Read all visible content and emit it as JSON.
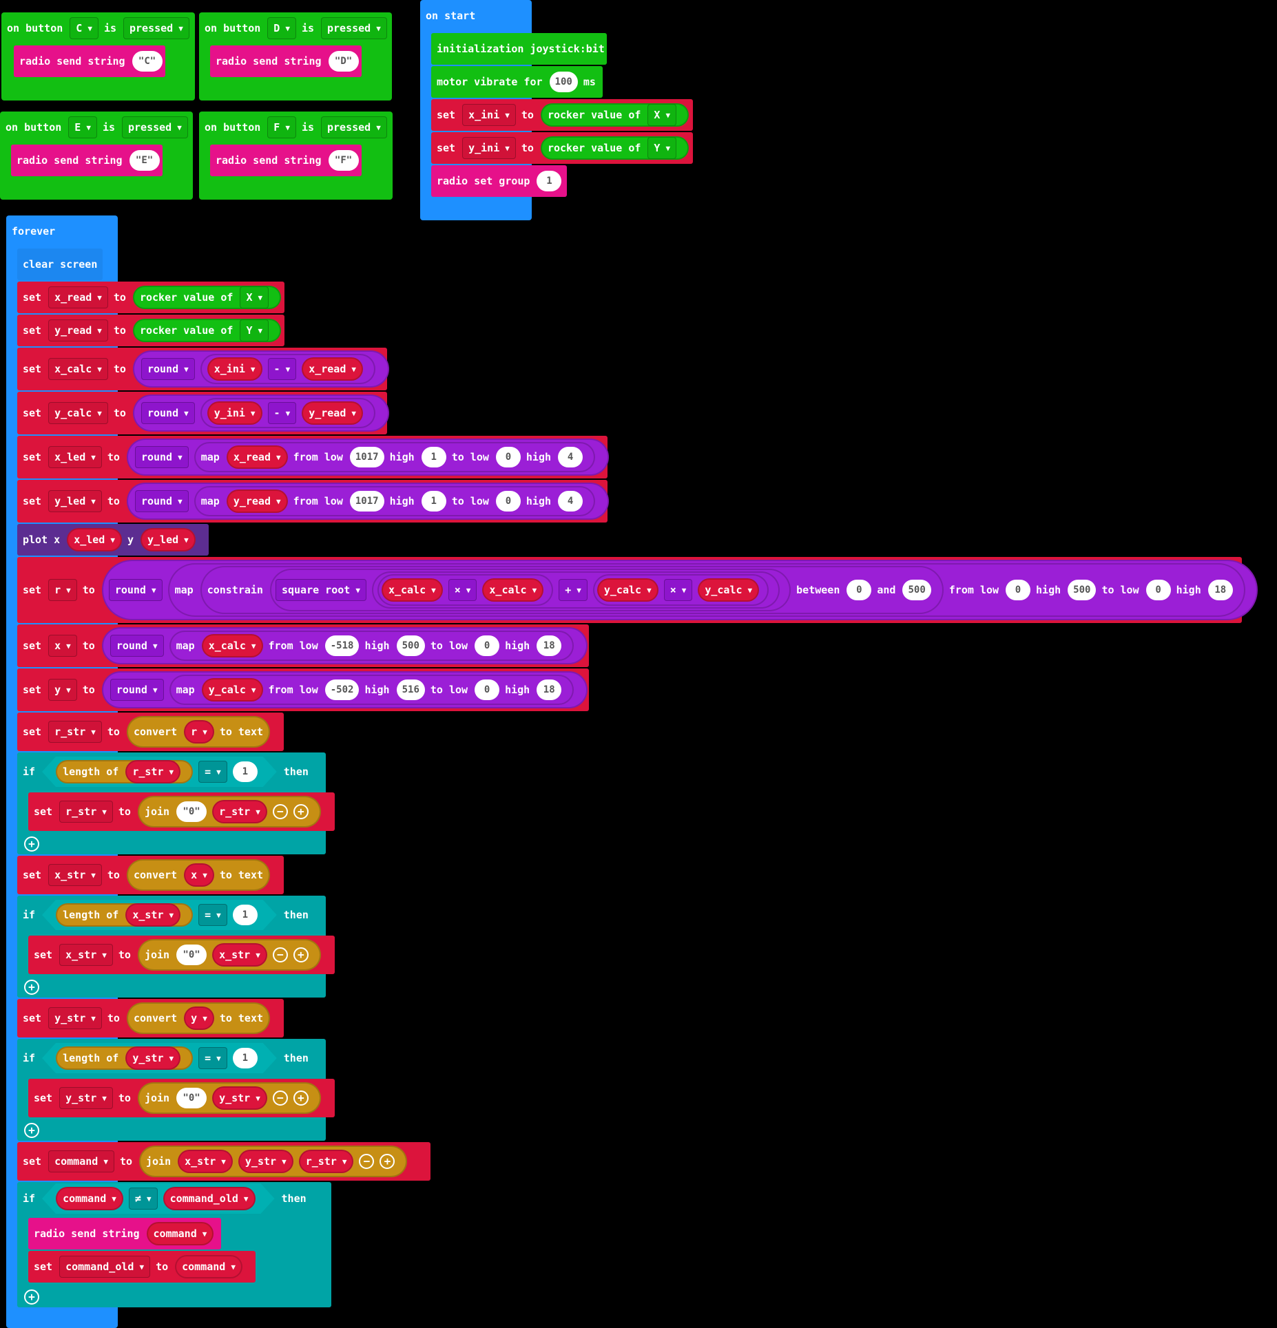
{
  "events": {
    "c": {
      "on": "on button",
      "button": "C",
      "is": "is",
      "state": "pressed",
      "action": "radio send string",
      "value": "C"
    },
    "d": {
      "on": "on button",
      "button": "D",
      "is": "is",
      "state": "pressed",
      "action": "radio send string",
      "value": "D"
    },
    "e": {
      "on": "on button",
      "button": "E",
      "is": "is",
      "state": "pressed",
      "action": "radio send string",
      "value": "E"
    },
    "f": {
      "on": "on button",
      "button": "F",
      "is": "is",
      "state": "pressed",
      "action": "radio send string",
      "value": "F"
    }
  },
  "on_start": {
    "label": "on start",
    "init": "initialization joystick:bit",
    "vibrate": {
      "label": "motor vibrate for",
      "value": "100",
      "unit": "ms"
    },
    "set": "set",
    "to": "to",
    "x_ini": "x_ini",
    "y_ini": "y_ini",
    "rocker": "rocker value of",
    "axis_x": "X",
    "axis_y": "Y",
    "group": {
      "label": "radio set group",
      "value": "1"
    }
  },
  "forever": {
    "label": "forever",
    "clear": "clear screen",
    "kw": {
      "set": "set",
      "to": "to",
      "round": "round",
      "map": "map",
      "from_low": "from low",
      "high": "high",
      "to_low": "to low",
      "plot": "plot x",
      "y": "y",
      "constrain": "constrain",
      "sqrt": "square root",
      "between": "between",
      "and": "and",
      "convert": "convert",
      "to_text": "to text",
      "if": "if",
      "then": "then",
      "length_of": "length of",
      "join": "join",
      "radio_send": "radio send string",
      "rocker": "rocker value of",
      "minus": "-",
      "times": "×",
      "plus": "+",
      "eq": "=",
      "neq": "≠"
    },
    "vars": {
      "x_read": "x_read",
      "y_read": "y_read",
      "x_calc": "x_calc",
      "y_calc": "y_calc",
      "x_led": "x_led",
      "y_led": "y_led",
      "x_ini": "x_ini",
      "y_ini": "y_ini",
      "r": "r",
      "x": "x",
      "y": "y",
      "r_str": "r_str",
      "x_str": "x_str",
      "y_str": "y_str",
      "command": "command",
      "command_old": "command_old"
    },
    "axis_x": "X",
    "axis_y": "Y",
    "led_map": {
      "from_low": "1017",
      "high": "1",
      "to_low": "0",
      "to_high": "4"
    },
    "r_map": {
      "c_low": "0",
      "c_high": "500",
      "from_low": "0",
      "high": "500",
      "to_low": "0",
      "to_high": "18"
    },
    "x_map": {
      "from_low": "-518",
      "high": "500",
      "to_low": "0",
      "to_high": "18"
    },
    "y_map": {
      "from_low": "-502",
      "high": "516",
      "to_low": "0",
      "to_high": "18"
    },
    "len_cmp": "1",
    "pad": "0"
  }
}
